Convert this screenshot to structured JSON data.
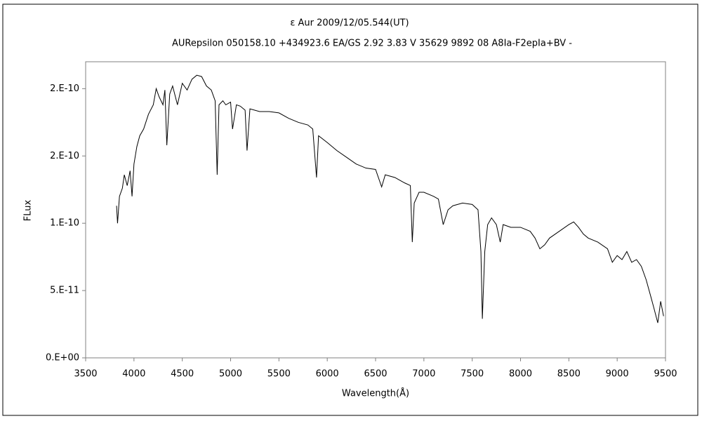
{
  "chart_data": {
    "type": "line",
    "title": "ε Aur 2009/12/05.544(UT)",
    "subtitle": "AURepsilon 050158.10 +434923.6 EA/GS 2.92 3.83 V 35629 9892 08 A8Ia-F2epIa+BV -",
    "x_label": "Wavelength(Å)",
    "y_label": "FLux",
    "xlim": [
      3500,
      9500
    ],
    "xticks": [
      3500,
      4000,
      4500,
      5000,
      5500,
      6000,
      6500,
      7000,
      7500,
      8000,
      8500,
      9000,
      9500
    ],
    "ylim": [
      0,
      2.2e-10
    ],
    "yticks": [
      {
        "value": 0,
        "label": "0.E+00"
      },
      {
        "value": 5e-11,
        "label": "5.E-11"
      },
      {
        "value": 1e-10,
        "label": "1.E-10"
      },
      {
        "value": 1.5e-10,
        "label": "2.E-10"
      },
      {
        "value": 2e-10,
        "label": "2.E-10"
      }
    ],
    "grid": false,
    "series": [
      {
        "color": "#000000",
        "x": [
          3820,
          3830,
          3850,
          3880,
          3900,
          3930,
          3960,
          3980,
          4000,
          4030,
          4060,
          4100,
          4150,
          4200,
          4230,
          4260,
          4300,
          4320,
          4340,
          4370,
          4400,
          4450,
          4500,
          4550,
          4600,
          4650,
          4700,
          4750,
          4800,
          4840,
          4861,
          4880,
          4920,
          4950,
          5000,
          5020,
          5060,
          5100,
          5150,
          5170,
          5200,
          5300,
          5400,
          5500,
          5600,
          5700,
          5800,
          5850,
          5889,
          5910,
          6000,
          6100,
          6200,
          6300,
          6400,
          6500,
          6563,
          6600,
          6700,
          6800,
          6860,
          6880,
          6900,
          6950,
          7000,
          7100,
          7150,
          7200,
          7250,
          7300,
          7400,
          7500,
          7560,
          7590,
          7605,
          7630,
          7660,
          7700,
          7750,
          7790,
          7820,
          7900,
          8000,
          8100,
          8150,
          8200,
          8250,
          8300,
          8400,
          8500,
          8550,
          8600,
          8650,
          8700,
          8800,
          8900,
          8950,
          9000,
          9050,
          9100,
          9150,
          9200,
          9250,
          9300,
          9350,
          9380,
          9420,
          9450,
          9480
        ],
        "values": [
          1.13e-10,
          1e-10,
          1.2e-10,
          1.26e-10,
          1.36e-10,
          1.28e-10,
          1.39e-10,
          1.2e-10,
          1.44e-10,
          1.57e-10,
          1.65e-10,
          1.7e-10,
          1.81e-10,
          1.88e-10,
          2e-10,
          1.94e-10,
          1.88e-10,
          1.99e-10,
          1.58e-10,
          1.96e-10,
          2.02e-10,
          1.88e-10,
          2.04e-10,
          1.99e-10,
          2.07e-10,
          2.1e-10,
          2.09e-10,
          2.02e-10,
          1.99e-10,
          1.91e-10,
          1.36e-10,
          1.88e-10,
          1.91e-10,
          1.88e-10,
          1.9e-10,
          1.7e-10,
          1.88e-10,
          1.87e-10,
          1.84e-10,
          1.54e-10,
          1.85e-10,
          1.83e-10,
          1.83e-10,
          1.82e-10,
          1.78e-10,
          1.75e-10,
          1.73e-10,
          1.7e-10,
          1.34e-10,
          1.65e-10,
          1.6e-10,
          1.54e-10,
          1.49e-10,
          1.44e-10,
          1.41e-10,
          1.4e-10,
          1.27e-10,
          1.36e-10,
          1.34e-10,
          1.3e-10,
          1.28e-10,
          8.6e-11,
          1.15e-10,
          1.23e-10,
          1.23e-10,
          1.2e-10,
          1.18e-10,
          9.9e-11,
          1.1e-10,
          1.13e-10,
          1.15e-10,
          1.14e-10,
          1.1e-10,
          7.9e-11,
          2.9e-11,
          7.9e-11,
          9.9e-11,
          1.04e-10,
          9.9e-11,
          8.6e-11,
          9.9e-11,
          9.7e-11,
          9.7e-11,
          9.4e-11,
          8.9e-11,
          8.1e-11,
          8.4e-11,
          8.9e-11,
          9.4e-11,
          9.9e-11,
          1.01e-10,
          9.7e-11,
          9.2e-11,
          8.9e-11,
          8.6e-11,
          8.1e-11,
          7.1e-11,
          7.6e-11,
          7.3e-11,
          7.9e-11,
          7.1e-11,
          7.3e-11,
          6.8e-11,
          5.8e-11,
          4.5e-11,
          3.7e-11,
          2.6e-11,
          4.2e-11,
          3.1e-11
        ]
      }
    ]
  }
}
